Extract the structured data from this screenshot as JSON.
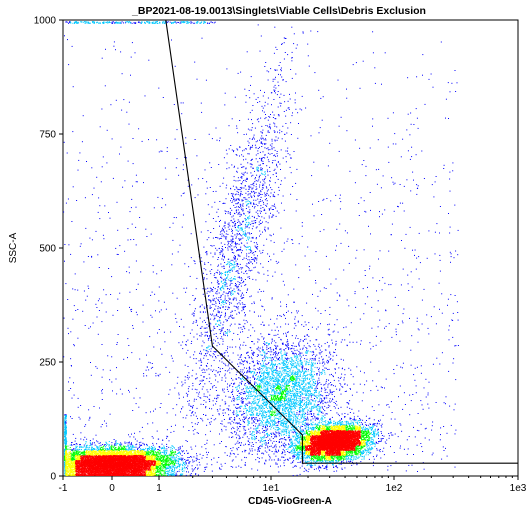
{
  "chart_data": {
    "type": "scatter",
    "title": "_BP2021-08-19.0013\\Singlets\\Viable Cells\\Debris Exclusion",
    "xlabel": "CD45-VioGreen-A",
    "ylabel": "SSC-A",
    "x_scale": "biexponential",
    "xlim": [
      -1,
      1000
    ],
    "ylim": [
      0,
      1000
    ],
    "x_ticks": [
      {
        "value": -1,
        "label": "-1"
      },
      {
        "value": 0,
        "label": "0"
      },
      {
        "value": 1,
        "label": "1"
      },
      {
        "value": 10,
        "label": "1e1"
      },
      {
        "value": 100,
        "label": "1e2"
      },
      {
        "value": 1000,
        "label": "1e3"
      }
    ],
    "y_ticks": [
      {
        "value": 0,
        "label": "0"
      },
      {
        "value": 250,
        "label": "250"
      },
      {
        "value": 500,
        "label": "500"
      },
      {
        "value": 750,
        "label": "750"
      },
      {
        "value": 1000,
        "label": "1000"
      }
    ],
    "grid": false,
    "legend": "none",
    "color_scale": [
      "#0000ff",
      "#00c8ff",
      "#00ff00",
      "#ffff00",
      "#ff0000"
    ],
    "populations": [
      {
        "center_x": 0.0,
        "center_ssc": 28,
        "density": "high"
      },
      {
        "center_x": 32,
        "center_ssc": 75,
        "density": "high"
      },
      {
        "center_x": 12,
        "center_ssc": 180,
        "density": "medium"
      },
      {
        "center_x": 5,
        "center_ssc": 500,
        "density": "low"
      }
    ],
    "gate": {
      "name": "Debris Exclusion",
      "vertices": [
        {
          "x": 1.15,
          "y": 1000
        },
        {
          "x": 3.0,
          "y": 285
        },
        {
          "x": 18,
          "y": 90
        },
        {
          "x": 18,
          "y": 28
        },
        {
          "x": 1000,
          "y": 28
        }
      ]
    }
  }
}
